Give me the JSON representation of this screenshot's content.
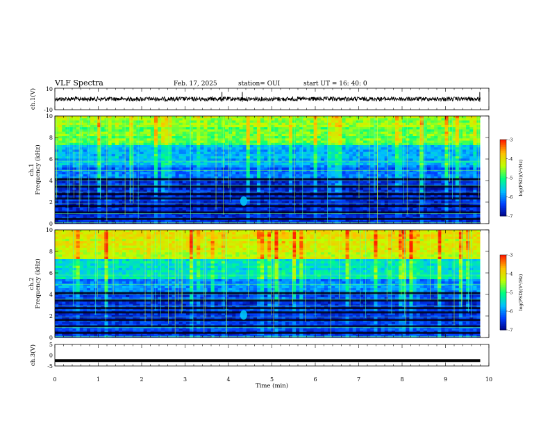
{
  "header": {
    "title": "VLF Spectra",
    "date": "Feb. 17, 2025",
    "station": "station= OUI",
    "start": "start  UT  =   16: 40: 0"
  },
  "colors": {
    "colormap": [
      "#000080",
      "#0040ff",
      "#00c0ff",
      "#00ff80",
      "#c0ff00",
      "#ffc000",
      "#ff2000",
      "#ffffff"
    ],
    "trace": "#000000"
  },
  "chart_data": [
    {
      "type": "line",
      "panel": "ch1-waveform",
      "ylabel": "ch.1(V)",
      "ylim": [
        -10,
        10
      ],
      "yticks": [
        "10",
        "-10"
      ],
      "xlim": [
        0,
        10
      ],
      "note_series": "noise trace around 0 V, spikes near 3.9, 4.3 and 9.8 min"
    },
    {
      "type": "heatmap",
      "panel": "ch1-spectrogram",
      "ylabel_top": "ch.1",
      "ylabel": "Frequency (kHz)",
      "ylim": [
        0,
        10
      ],
      "yticks": [
        "0",
        "2",
        "4",
        "6",
        "8",
        "10"
      ],
      "xlim": [
        0,
        10
      ],
      "data_end_min": 9.8,
      "colorbar": {
        "label": "log(PSD)(V²/Hz)",
        "range": [
          -7,
          -3
        ],
        "ticks": [
          "-3",
          "-4",
          "-5",
          "-6",
          "-7"
        ]
      }
    },
    {
      "type": "heatmap",
      "panel": "ch2-spectrogram",
      "ylabel_top": "ch.2",
      "ylabel": "Frequency (kHz)",
      "ylim": [
        0,
        10
      ],
      "yticks": [
        "0",
        "2",
        "4",
        "6",
        "8",
        "10"
      ],
      "xlim": [
        0,
        10
      ],
      "data_end_min": 9.8,
      "colorbar": {
        "label": "log(PSD)(V²/Hz)",
        "range": [
          -7,
          -3
        ],
        "ticks": [
          "-3",
          "-4",
          "-5",
          "-6",
          "-7"
        ]
      }
    },
    {
      "type": "line",
      "panel": "ch3-waveform",
      "ylabel": "ch.3(V)",
      "ylim": [
        -5,
        5
      ],
      "yticks": [
        "5",
        "0",
        "-5"
      ],
      "xlim": [
        0,
        10
      ],
      "note_series": "flat thick trace at about -2.5 V"
    }
  ],
  "xaxis": {
    "label": "Time (min)",
    "ticks": [
      "0",
      "1",
      "2",
      "3",
      "4",
      "5",
      "6",
      "7",
      "8",
      "9",
      "10"
    ]
  }
}
